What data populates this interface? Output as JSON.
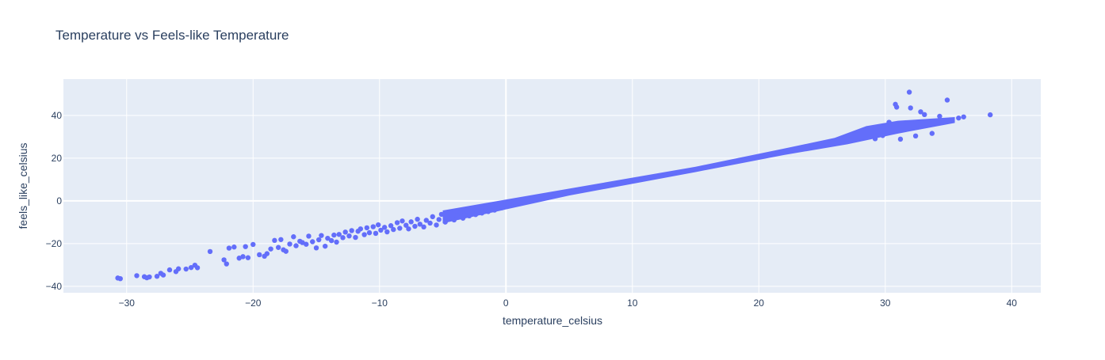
{
  "chart_data": {
    "type": "scatter",
    "title": "Temperature vs Feels-like Temperature",
    "xlabel": "temperature_celsius",
    "ylabel": "feels_like_celsius",
    "xlim": [
      -35,
      42.3
    ],
    "ylim": [
      -43,
      57
    ],
    "x_ticks": [
      -30,
      -20,
      -10,
      0,
      10,
      20,
      30,
      40
    ],
    "y_ticks": [
      -40,
      -20,
      0,
      20,
      40
    ],
    "x_tick_labels": [
      "−30",
      "−20",
      "−10",
      "0",
      "10",
      "20",
      "30",
      "40"
    ],
    "y_tick_labels": [
      "−40",
      "−20",
      "0",
      "20",
      "40"
    ],
    "grid": true,
    "colors": {
      "marker": "#636efa",
      "plot_bg": "#e5ecf6",
      "grid": "#ffffff",
      "text": "#2a3f5f"
    },
    "series": [
      {
        "points": [
          [
            -30.7,
            -36.1
          ],
          [
            -30.5,
            -36.4
          ],
          [
            -29.2,
            -35.0
          ],
          [
            -28.6,
            -35.5
          ],
          [
            -28.4,
            -36.0
          ],
          [
            -28.2,
            -35.6
          ],
          [
            -27.6,
            -35.3
          ],
          [
            -27.3,
            -33.9
          ],
          [
            -27.1,
            -34.7
          ],
          [
            -26.6,
            -32.3
          ],
          [
            -26.1,
            -33.1
          ],
          [
            -25.9,
            -31.8
          ],
          [
            -25.3,
            -31.9
          ],
          [
            -24.9,
            -31.2
          ],
          [
            -24.6,
            -30.1
          ],
          [
            -24.4,
            -31.3
          ],
          [
            -23.4,
            -23.7
          ],
          [
            -22.3,
            -27.6
          ],
          [
            -22.1,
            -29.5
          ],
          [
            -21.9,
            -22.1
          ],
          [
            -21.5,
            -21.6
          ],
          [
            -21.1,
            -26.8
          ],
          [
            -20.8,
            -26.1
          ],
          [
            -20.6,
            -21.4
          ],
          [
            -20.4,
            -26.6
          ],
          [
            -20.0,
            -20.4
          ],
          [
            -19.5,
            -25.2
          ],
          [
            -19.1,
            -25.9
          ],
          [
            -18.9,
            -24.7
          ],
          [
            -18.6,
            -22.5
          ],
          [
            -18.3,
            -18.5
          ],
          [
            -18.0,
            -21.8
          ],
          [
            -17.8,
            -18.1
          ],
          [
            -17.6,
            -22.9
          ],
          [
            -17.4,
            -23.6
          ],
          [
            -17.1,
            -20.2
          ],
          [
            -16.8,
            -16.8
          ],
          [
            -16.6,
            -21.0
          ],
          [
            -16.3,
            -18.9
          ],
          [
            -16.1,
            -19.5
          ],
          [
            -15.8,
            -20.3
          ],
          [
            -15.6,
            -16.5
          ],
          [
            -15.3,
            -19.1
          ],
          [
            -15.0,
            -22.0
          ],
          [
            -14.8,
            -18.2
          ],
          [
            -14.6,
            -16.2
          ],
          [
            -14.3,
            -21.2
          ],
          [
            -14.1,
            -17.5
          ],
          [
            -13.8,
            -18.6
          ],
          [
            -13.6,
            -16.0
          ],
          [
            -13.4,
            -19.3
          ],
          [
            -13.2,
            -15.7
          ],
          [
            -12.9,
            -17.2
          ],
          [
            -12.7,
            -14.6
          ],
          [
            -12.4,
            -16.4
          ],
          [
            -12.2,
            -13.9
          ],
          [
            -11.9,
            -17.1
          ],
          [
            -11.7,
            -14.2
          ],
          [
            -11.5,
            -13.1
          ],
          [
            -11.2,
            -15.8
          ],
          [
            -11.0,
            -12.6
          ],
          [
            -10.8,
            -14.9
          ],
          [
            -10.5,
            -12.1
          ],
          [
            -10.3,
            -15.2
          ],
          [
            -10.1,
            -11.2
          ],
          [
            -9.9,
            -13.7
          ],
          [
            -9.6,
            -12.4
          ],
          [
            -9.4,
            -14.5
          ],
          [
            -9.1,
            -11.6
          ],
          [
            -8.9,
            -13.4
          ],
          [
            -8.6,
            -10.2
          ],
          [
            -8.4,
            -12.8
          ],
          [
            -8.2,
            -9.4
          ],
          [
            -7.9,
            -11.4
          ],
          [
            -7.7,
            -13.1
          ],
          [
            -7.5,
            -9.8
          ],
          [
            -7.2,
            -11.9
          ],
          [
            -7.0,
            -8.6
          ],
          [
            -6.8,
            -10.9
          ],
          [
            -6.5,
            -12.2
          ],
          [
            -6.3,
            -9.1
          ],
          [
            -6.0,
            -10.4
          ],
          [
            -5.8,
            -7.4
          ],
          [
            -5.5,
            -11.3
          ],
          [
            -5.3,
            -8.7
          ],
          [
            -5.1,
            -6.3
          ],
          [
            -4.8,
            -9.9
          ],
          [
            -4.6,
            -7.8
          ],
          [
            -4.4,
            -5.6
          ],
          [
            -4.1,
            -8.9
          ],
          [
            -3.9,
            -6.8
          ],
          [
            -3.6,
            -5.2
          ],
          [
            -3.4,
            -8.1
          ],
          [
            -3.1,
            -4.6
          ],
          [
            -2.9,
            -7.0
          ],
          [
            -2.6,
            -4.0
          ],
          [
            -2.4,
            -6.4
          ],
          [
            -2.1,
            -3.5
          ],
          [
            -1.9,
            -5.7
          ],
          [
            -1.6,
            -3.1
          ],
          [
            -1.4,
            -5.0
          ],
          [
            -1.1,
            -2.4
          ],
          [
            -0.9,
            -4.3
          ],
          [
            -0.6,
            -1.8
          ],
          [
            -0.3,
            -3.2
          ],
          [
            0.0,
            -0.9
          ],
          [
            0.4,
            -1.6
          ],
          [
            30.8,
            45.2
          ],
          [
            30.9,
            43.9
          ],
          [
            31.9,
            50.9
          ],
          [
            32.0,
            43.5
          ],
          [
            32.8,
            41.7
          ],
          [
            34.9,
            47.2
          ],
          [
            35.8,
            38.8
          ],
          [
            36.2,
            39.3
          ],
          [
            38.3,
            40.3
          ],
          [
            29.2,
            29.1
          ],
          [
            29.8,
            30.6
          ],
          [
            30.3,
            36.8
          ],
          [
            31.2,
            28.9
          ],
          [
            32.4,
            30.4
          ],
          [
            33.1,
            40.4
          ],
          [
            33.7,
            31.6
          ],
          [
            34.3,
            39.6
          ],
          [
            35.1,
            37.9
          ]
        ]
      }
    ]
  }
}
